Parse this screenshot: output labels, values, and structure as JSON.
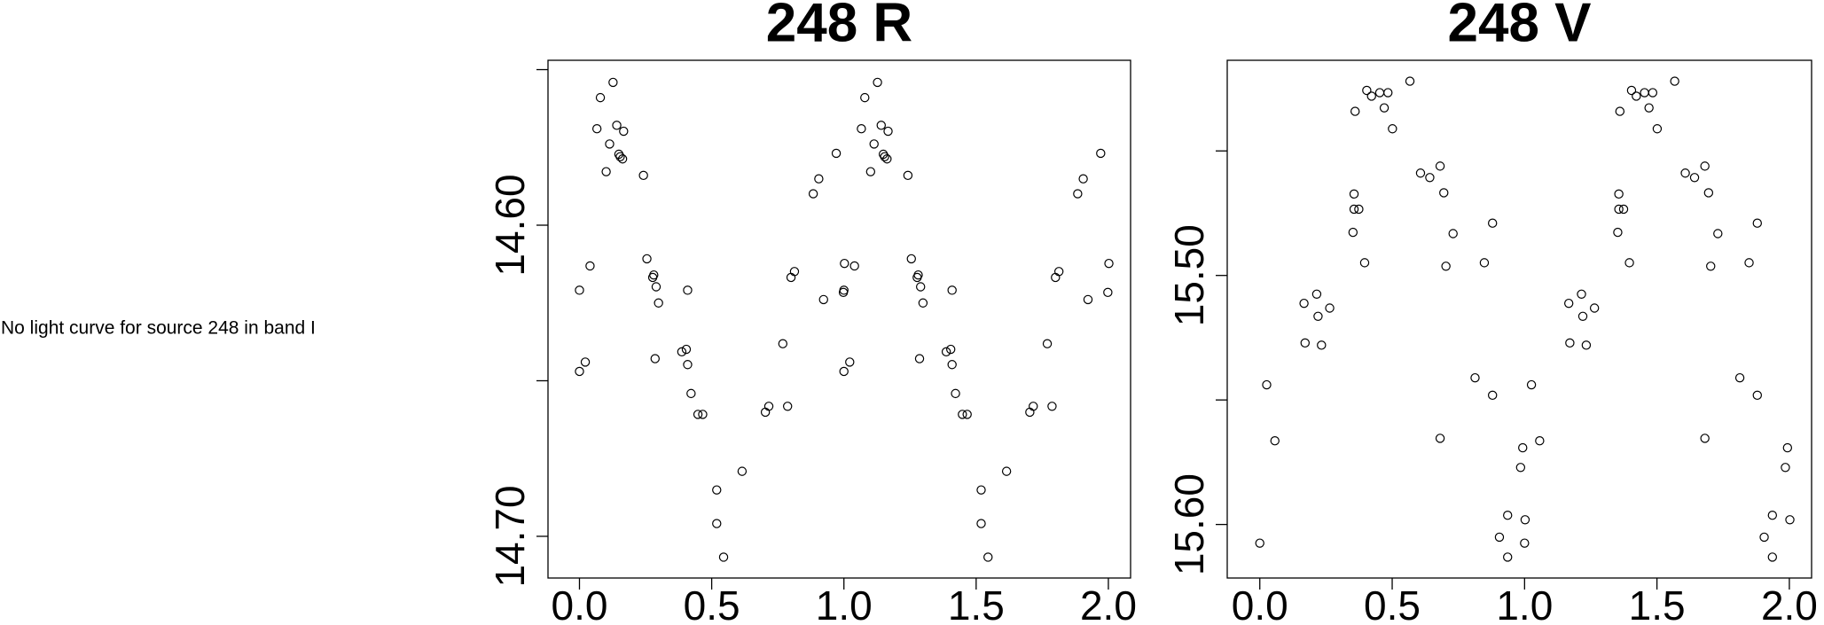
{
  "message": "No light curve for source 248 in band I",
  "chart_data": [
    {
      "type": "scatter",
      "title": "248 R",
      "color": "#000000",
      "xlim": [
        -0.119,
        2.084
      ],
      "ylim": [
        14.7134,
        14.547
      ],
      "xticks": [
        {
          "value": 0,
          "label": "0.0"
        },
        {
          "value": 0.5,
          "label": "0.5"
        },
        {
          "value": 1,
          "label": "1.0"
        },
        {
          "value": 1.5,
          "label": "1.5"
        },
        {
          "value": 2,
          "label": "2.0"
        }
      ],
      "yticks": [
        {
          "value": 14.55,
          "label": null
        },
        {
          "value": 14.6,
          "label": "14.60"
        },
        {
          "value": 14.65,
          "label": null
        },
        {
          "value": 14.7,
          "label": "14.70"
        }
      ],
      "x": [
        0.0,
        0.0,
        0.022,
        0.04,
        0.066,
        0.079,
        0.101,
        0.114,
        0.127,
        0.141,
        0.149,
        0.154,
        0.163,
        0.167,
        0.242,
        0.255,
        0.277,
        0.281,
        0.29,
        0.299,
        0.286,
        0.387,
        0.404,
        0.409,
        0.409,
        0.422,
        0.448,
        0.466,
        0.519,
        0.519,
        0.545,
        0.615,
        0.703,
        0.716,
        0.787,
        0.769,
        0.8,
        0.813,
        0.884,
        0.905,
        0.923,
        0.971,
        0.998,
        1.002,
        1.0,
        1.0,
        1.022,
        1.04,
        1.066,
        1.079,
        1.101,
        1.114,
        1.127,
        1.141,
        1.149,
        1.154,
        1.163,
        1.167,
        1.242,
        1.255,
        1.277,
        1.281,
        1.29,
        1.299,
        1.286,
        1.387,
        1.404,
        1.409,
        1.409,
        1.422,
        1.448,
        1.466,
        1.519,
        1.519,
        1.545,
        1.615,
        1.703,
        1.716,
        1.787,
        1.769,
        1.8,
        1.813,
        1.884,
        1.905,
        1.923,
        1.971,
        1.998,
        2.002
      ],
      "values": [
        14.6209,
        14.647,
        14.644,
        14.6131,
        14.569,
        14.559,
        14.5828,
        14.5739,
        14.5541,
        14.5679,
        14.5772,
        14.578,
        14.5787,
        14.5698,
        14.584,
        14.6108,
        14.6168,
        14.616,
        14.6198,
        14.625,
        14.6429,
        14.6407,
        14.6399,
        14.6209,
        14.6448,
        14.6541,
        14.6608,
        14.6608,
        14.6851,
        14.6959,
        14.7067,
        14.6791,
        14.6601,
        14.6582,
        14.6582,
        14.6381,
        14.6168,
        14.6149,
        14.5899,
        14.5851,
        14.6239,
        14.5769,
        14.6216,
        14.6123,
        14.6209,
        14.647,
        14.644,
        14.6131,
        14.569,
        14.559,
        14.5828,
        14.5739,
        14.5541,
        14.5679,
        14.5772,
        14.578,
        14.5787,
        14.5698,
        14.584,
        14.6108,
        14.6168,
        14.616,
        14.6198,
        14.625,
        14.6429,
        14.6407,
        14.6399,
        14.6209,
        14.6448,
        14.6541,
        14.6608,
        14.6608,
        14.6851,
        14.6959,
        14.7067,
        14.6791,
        14.6601,
        14.6582,
        14.6582,
        14.6381,
        14.6168,
        14.6149,
        14.5899,
        14.5851,
        14.6239,
        14.5769,
        14.6216,
        14.6123
      ]
    },
    {
      "type": "scatter",
      "title": "248 V",
      "color": "#000000",
      "xlim": [
        -0.123,
        2.084
      ],
      "ylim": [
        15.6215,
        15.4136
      ],
      "xticks": [
        {
          "value": 0,
          "label": "0.0"
        },
        {
          "value": 0.5,
          "label": "0.5"
        },
        {
          "value": 1,
          "label": "1.0"
        },
        {
          "value": 1.5,
          "label": "1.5"
        },
        {
          "value": 2,
          "label": "2.0"
        }
      ],
      "yticks": [
        {
          "value": 15.45,
          "label": null
        },
        {
          "value": 15.5,
          "label": "15.50"
        },
        {
          "value": 15.55,
          "label": null
        },
        {
          "value": 15.6,
          "label": "15.60"
        }
      ],
      "x": [
        0.0,
        0.026,
        0.057,
        0.167,
        0.171,
        0.215,
        0.22,
        0.233,
        0.264,
        0.352,
        0.356,
        0.356,
        0.374,
        0.396,
        0.36,
        0.404,
        0.422,
        0.453,
        0.484,
        0.47,
        0.501,
        0.567,
        0.607,
        0.642,
        0.681,
        0.695,
        0.681,
        0.703,
        0.73,
        0.813,
        0.848,
        0.879,
        0.879,
        0.905,
        0.936,
        0.936,
        0.985,
        0.993,
        1.002,
        1.0,
        1.026,
        1.057,
        1.167,
        1.171,
        1.215,
        1.22,
        1.233,
        1.264,
        1.352,
        1.356,
        1.356,
        1.374,
        1.396,
        1.36,
        1.404,
        1.422,
        1.453,
        1.484,
        1.47,
        1.501,
        1.567,
        1.607,
        1.642,
        1.681,
        1.695,
        1.681,
        1.703,
        1.73,
        1.813,
        1.848,
        1.879,
        1.879,
        1.905,
        1.936,
        1.936,
        1.985,
        1.993,
        2.002
      ],
      "values": [
        15.6075,
        15.5439,
        15.5664,
        15.5112,
        15.5271,
        15.5075,
        15.5164,
        15.528,
        15.5131,
        15.4827,
        15.4673,
        15.4734,
        15.4734,
        15.4949,
        15.4341,
        15.4257,
        15.428,
        15.4266,
        15.4266,
        15.4327,
        15.4411,
        15.422,
        15.4589,
        15.4607,
        15.4561,
        15.4668,
        15.5654,
        15.4963,
        15.4832,
        15.5411,
        15.4949,
        15.5481,
        15.479,
        15.6051,
        15.5963,
        15.6131,
        15.5771,
        15.5692,
        15.5981,
        15.6075,
        15.5439,
        15.5664,
        15.5112,
        15.5271,
        15.5075,
        15.5164,
        15.528,
        15.5131,
        15.4827,
        15.4673,
        15.4734,
        15.4734,
        15.4949,
        15.4341,
        15.4257,
        15.428,
        15.4266,
        15.4266,
        15.4327,
        15.4411,
        15.422,
        15.4589,
        15.4607,
        15.4561,
        15.4668,
        15.5654,
        15.4963,
        15.4832,
        15.5411,
        15.4949,
        15.5481,
        15.479,
        15.6051,
        15.5963,
        15.6131,
        15.5771,
        15.5692,
        15.5981
      ]
    }
  ]
}
